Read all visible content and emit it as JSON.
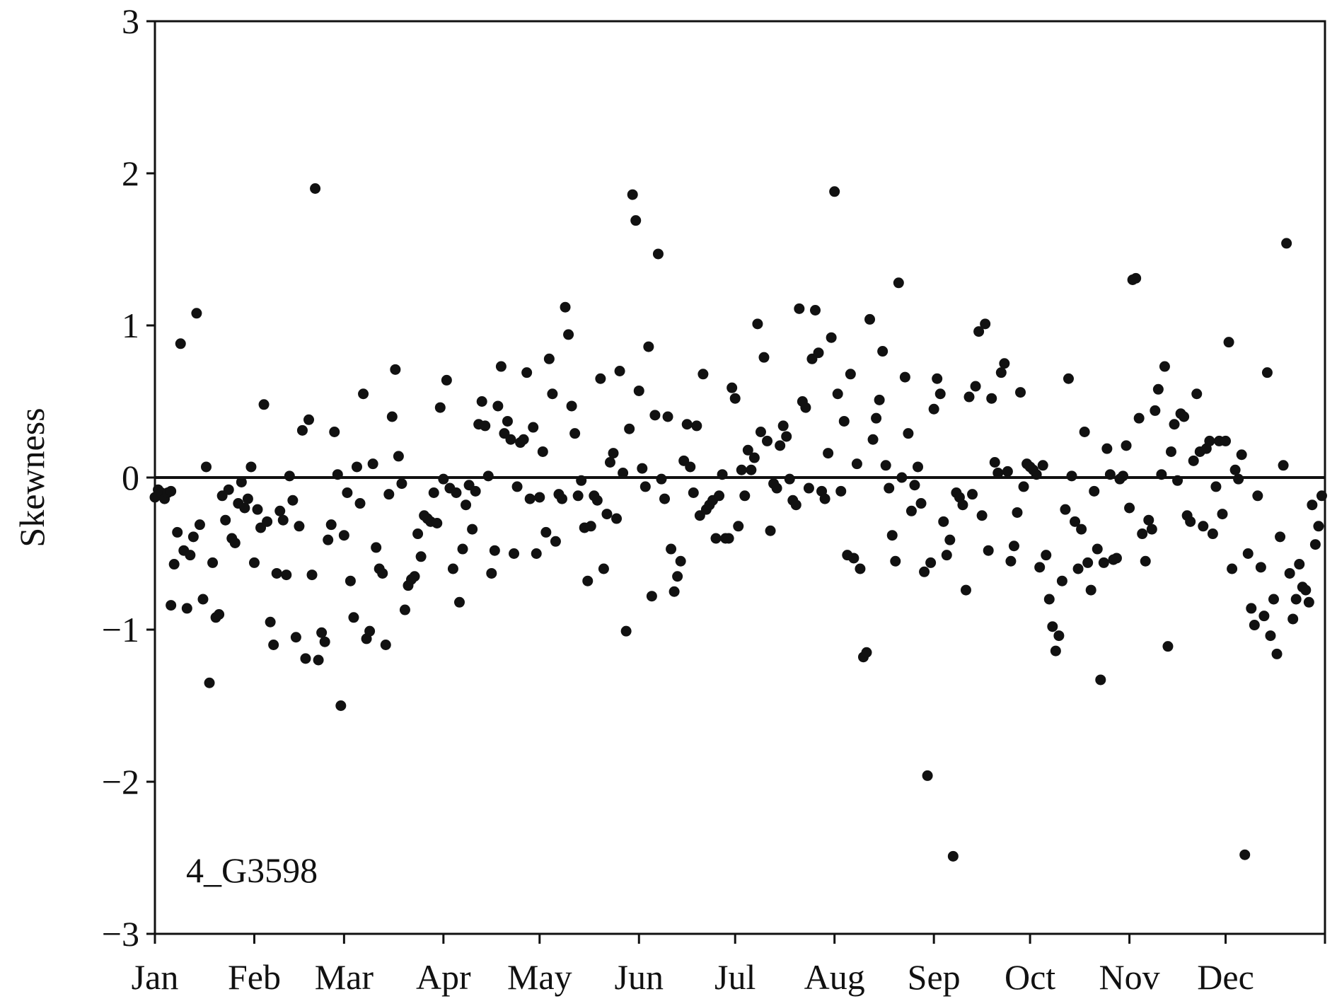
{
  "chart_data": {
    "type": "scatter",
    "title": "",
    "xlabel": "",
    "ylabel": "Skewness",
    "annotation": "4_G3598",
    "x_categories": [
      "Jan",
      "Feb",
      "Mar",
      "Apr",
      "May",
      "Jun",
      "Jul",
      "Aug",
      "Sep",
      "Oct",
      "Nov",
      "Dec"
    ],
    "xlim": [
      0,
      365
    ],
    "ylim": [
      -3,
      3
    ],
    "yticks": [
      {
        "value": 3,
        "label": "3"
      },
      {
        "value": 2,
        "label": "2"
      },
      {
        "value": 1,
        "label": "1"
      },
      {
        "value": 0,
        "label": "0"
      },
      {
        "value": -1,
        "label": "−1"
      },
      {
        "value": -2,
        "label": "−2"
      },
      {
        "value": -3,
        "label": "−3"
      }
    ],
    "reference_line": 0,
    "grid": false,
    "legend": "none",
    "marker_color": "#111111",
    "series": [
      {
        "x": [
          0,
          1,
          2,
          3,
          4,
          5,
          5,
          6,
          7,
          8,
          9,
          10,
          11,
          12,
          13,
          14,
          15,
          16,
          17,
          18,
          19,
          20,
          21,
          22,
          23,
          24,
          25,
          26,
          27,
          28,
          29,
          30,
          31,
          32,
          33,
          34,
          35,
          36,
          37,
          38,
          39,
          40,
          41,
          42,
          43,
          44,
          45,
          46,
          47,
          48,
          49,
          50,
          51,
          52,
          53,
          54,
          55,
          56,
          57,
          58,
          59,
          60,
          61,
          62,
          63,
          64,
          65,
          66,
          67,
          68,
          69,
          70,
          71,
          72,
          73,
          74,
          75,
          76,
          77,
          78,
          79,
          80,
          81,
          82,
          83,
          84,
          85,
          86,
          87,
          88,
          89,
          90,
          91,
          92,
          93,
          94,
          95,
          96,
          97,
          98,
          99,
          100,
          101,
          102,
          103,
          104,
          105,
          106,
          107,
          108,
          109,
          110,
          111,
          112,
          113,
          114,
          115,
          116,
          117,
          118,
          119,
          120,
          121,
          122,
          123,
          124,
          125,
          126,
          127,
          128,
          129,
          130,
          131,
          132,
          133,
          134,
          135,
          136,
          137,
          138,
          139,
          140,
          141,
          142,
          143,
          144,
          145,
          146,
          147,
          148,
          149,
          150,
          151,
          152,
          153,
          154,
          155,
          156,
          157,
          158,
          159,
          160,
          161,
          162,
          163,
          164,
          165,
          166,
          167,
          168,
          169,
          170,
          171,
          172,
          173,
          174,
          175,
          176,
          177,
          178,
          179,
          180,
          181,
          182,
          183,
          184,
          185,
          186,
          187,
          188,
          189,
          190,
          191,
          192,
          193,
          194,
          195,
          196,
          197,
          198,
          199,
          200,
          201,
          202,
          203,
          204,
          205,
          206,
          207,
          208,
          209,
          210,
          211,
          212,
          213,
          214,
          215,
          216,
          217,
          218,
          219,
          220,
          221,
          222,
          223,
          224,
          225,
          226,
          227,
          228,
          229,
          230,
          231,
          232,
          233,
          234,
          235,
          236,
          237,
          238,
          239,
          240,
          241,
          242,
          243,
          244,
          245,
          246,
          247,
          248,
          249,
          250,
          251,
          252,
          253,
          254,
          255,
          256,
          257,
          258,
          259,
          260,
          261,
          262,
          263,
          264,
          265,
          266,
          267,
          268,
          269,
          270,
          271,
          272,
          273,
          274,
          275,
          276,
          277,
          278,
          279,
          280,
          281,
          282,
          283,
          284,
          285,
          286,
          287,
          288,
          289,
          290,
          291,
          292,
          293,
          294,
          295,
          296,
          297,
          298,
          299,
          300,
          301,
          302,
          303,
          304,
          305,
          306,
          307,
          308,
          309,
          310,
          311,
          312,
          313,
          314,
          315,
          316,
          317,
          318,
          319,
          320,
          321,
          322,
          323,
          324,
          325,
          326,
          327,
          328,
          329,
          330,
          331,
          332,
          333,
          334,
          335,
          336,
          337,
          338,
          339,
          340,
          341,
          342,
          343,
          344,
          345,
          346,
          347,
          348,
          349,
          350,
          351,
          352,
          353,
          354,
          355,
          356,
          357,
          358,
          359,
          360,
          361,
          362,
          363,
          364
        ],
        "y": [
          -0.13,
          -0.08,
          -0.1,
          -0.14,
          -0.1,
          -0.84,
          -0.09,
          -0.57,
          -0.36,
          0.88,
          -0.48,
          -0.86,
          -0.51,
          -0.39,
          1.08,
          -0.31,
          -0.8,
          0.07,
          -1.35,
          -0.56,
          -0.92,
          -0.9,
          -0.12,
          -0.28,
          -0.08,
          -0.4,
          -0.43,
          -0.17,
          -0.03,
          -0.2,
          -0.14,
          0.07,
          -0.56,
          -0.21,
          -0.33,
          0.48,
          -0.29,
          -0.95,
          -1.1,
          -0.63,
          -0.22,
          -0.28,
          -0.64,
          0.01,
          -0.15,
          -1.05,
          -0.32,
          0.31,
          -1.19,
          0.38,
          -0.64,
          1.9,
          -1.2,
          -1.02,
          -1.08,
          -0.41,
          -0.31,
          0.3,
          0.02,
          -1.5,
          -0.38,
          -0.1,
          -0.68,
          -0.92,
          0.07,
          -0.17,
          0.55,
          -1.06,
          -1.01,
          0.09,
          -0.46,
          -0.6,
          -0.63,
          -1.1,
          -0.11,
          0.4,
          0.71,
          0.14,
          -0.04,
          -0.87,
          -0.71,
          -0.67,
          -0.65,
          -0.37,
          -0.52,
          -0.25,
          -0.27,
          -0.29,
          -0.1,
          -0.3,
          0.46,
          -0.01,
          0.64,
          -0.07,
          -0.6,
          -0.1,
          -0.82,
          -0.47,
          -0.18,
          -0.05,
          -0.34,
          -0.09,
          0.35,
          0.5,
          0.34,
          0.01,
          -0.63,
          -0.48,
          0.47,
          0.73,
          0.29,
          0.37,
          0.25,
          -0.5,
          -0.06,
          0.23,
          0.25,
          0.69,
          -0.14,
          0.33,
          -0.5,
          -0.13,
          0.17,
          -0.36,
          0.78,
          0.55,
          -0.42,
          -0.11,
          -0.14,
          1.12,
          0.94,
          0.47,
          0.29,
          -0.12,
          -0.02,
          -0.33,
          -0.68,
          -0.32,
          -0.12,
          -0.15,
          0.65,
          -0.6,
          -0.24,
          0.1,
          0.16,
          -0.27,
          0.7,
          0.03,
          -1.01,
          0.32,
          1.86,
          1.69,
          0.57,
          0.06,
          -0.06,
          0.86,
          -0.78,
          0.41,
          1.47,
          -0.01,
          -0.14,
          0.4,
          -0.47,
          -0.75,
          -0.65,
          -0.55,
          0.11,
          0.35,
          0.07,
          -0.1,
          0.34,
          -0.25,
          0.68,
          -0.21,
          -0.18,
          -0.15,
          -0.4,
          -0.12,
          0.02,
          -0.4,
          -0.4,
          0.59,
          0.52,
          -0.32,
          0.05,
          -0.12,
          0.18,
          0.05,
          0.13,
          1.01,
          0.3,
          0.79,
          0.24,
          -0.35,
          -0.04,
          -0.07,
          0.21,
          0.34,
          0.27,
          -0.01,
          -0.15,
          -0.18,
          1.11,
          0.5,
          0.46,
          -0.07,
          0.78,
          1.1,
          0.82,
          -0.09,
          -0.14,
          0.16,
          0.92,
          1.88,
          0.55,
          -0.09,
          0.37,
          -0.51,
          0.68,
          -0.53,
          0.09,
          -0.6,
          -1.18,
          -1.15,
          1.04,
          0.25,
          0.39,
          0.51,
          0.83,
          0.08,
          -0.07,
          -0.38,
          -0.55,
          1.28,
          0.0,
          0.66,
          0.29,
          -0.22,
          -0.05,
          0.07,
          -0.17,
          -0.62,
          -1.96,
          -0.56,
          0.45,
          0.65,
          0.55,
          -0.29,
          -0.51,
          -0.41,
          -2.49,
          -0.1,
          -0.13,
          -0.18,
          -0.74,
          0.53,
          -0.11,
          0.6,
          0.96,
          -0.25,
          1.01,
          -0.48,
          0.52,
          0.1,
          0.03,
          0.69,
          0.75,
          0.04,
          -0.55,
          -0.45,
          -0.23,
          0.56,
          -0.06,
          0.09,
          0.07,
          0.05,
          0.02,
          -0.59,
          0.08,
          -0.51,
          -0.8,
          -0.98,
          -1.14,
          -1.04,
          -0.68,
          -0.21,
          0.65,
          0.01,
          -0.29,
          -0.6,
          -0.34,
          0.3,
          -0.56,
          -0.74,
          -0.09,
          -0.47,
          -1.33,
          -0.56,
          0.19,
          0.02,
          -0.54,
          -0.53,
          -0.01,
          0.01,
          0.21,
          -0.2,
          1.3,
          1.31,
          0.39,
          -0.37,
          -0.55,
          -0.28,
          -0.34,
          0.44,
          0.58,
          0.02,
          0.73,
          -1.11,
          0.17,
          0.35,
          -0.02,
          0.42,
          0.4,
          -0.25,
          -0.29,
          0.11,
          0.55,
          0.17,
          -0.32,
          0.19,
          0.24,
          -0.37,
          -0.06,
          0.24,
          -0.24,
          0.24,
          0.89,
          -0.6,
          0.05,
          -0.01,
          0.15,
          -2.48,
          -0.5,
          -0.86,
          -0.97,
          -0.12,
          -0.59,
          -0.91,
          0.69,
          -1.04,
          -0.8,
          -1.16,
          -0.39,
          0.08,
          1.54,
          -0.63,
          -0.93,
          -0.8,
          -0.57,
          -0.72,
          -0.74,
          -0.82,
          -0.18,
          -0.44,
          -0.32,
          -0.12
        ]
      }
    ]
  }
}
